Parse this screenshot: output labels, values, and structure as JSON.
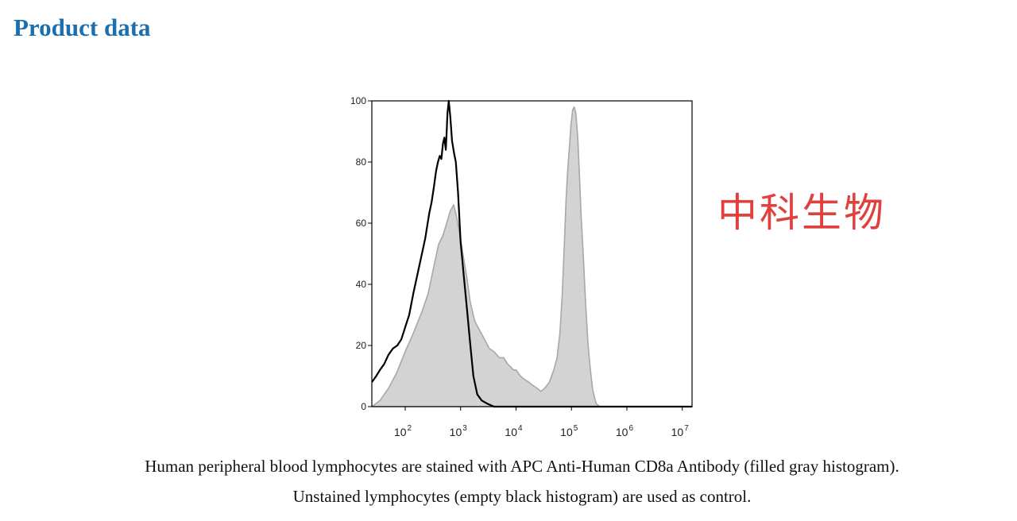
{
  "page": {
    "heading": "Product data",
    "watermark": "中科生物",
    "caption_line1": "Human peripheral blood lymphocytes are stained with APC Anti-Human CD8a Antibody (filled gray histogram).",
    "caption_line2": "Unstained lymphocytes (empty black histogram) are used as control."
  },
  "colors": {
    "heading": "#1a6fb0",
    "watermark": "#e0403e",
    "stained_fill": "#d3d3d3",
    "stained_line": "#a8a8a8",
    "control_line": "#000000"
  },
  "chart_data": {
    "type": "area",
    "title": "",
    "xlabel": "",
    "ylabel": "",
    "x_scale": "log",
    "xlim": [
      25,
      15000000
    ],
    "ylim": [
      0,
      100
    ],
    "x_ticks": [
      {
        "value": 100,
        "label": "10",
        "exp": "2"
      },
      {
        "value": 1000,
        "label": "10",
        "exp": "3"
      },
      {
        "value": 10000,
        "label": "10",
        "exp": "4"
      },
      {
        "value": 100000,
        "label": "10",
        "exp": "5"
      },
      {
        "value": 1000000,
        "label": "10",
        "exp": "6"
      },
      {
        "value": 10000000,
        "label": "10",
        "exp": "7"
      }
    ],
    "y_ticks": [
      {
        "value": 0,
        "label": "0"
      },
      {
        "value": 20,
        "label": "20"
      },
      {
        "value": 40,
        "label": "40"
      },
      {
        "value": 60,
        "label": "60"
      },
      {
        "value": 80,
        "label": "80"
      },
      {
        "value": 100,
        "label": "100"
      }
    ],
    "grid": false,
    "legend": "none",
    "series": [
      {
        "style": "filled gray histogram",
        "x": [
          25,
          35,
          50,
          70,
          100,
          140,
          200,
          260,
          330,
          400,
          480,
          560,
          650,
          750,
          850,
          950,
          1100,
          1300,
          1500,
          1800,
          2200,
          2700,
          3300,
          4000,
          5000,
          6000,
          7000,
          8000,
          9000,
          10000,
          12000,
          14000,
          17000,
          20000,
          24000,
          28000,
          33000,
          40000,
          48000,
          55000,
          62000,
          68000,
          74000,
          80000,
          86000,
          92000,
          98000,
          105000,
          112000,
          120000,
          130000,
          140000,
          150000,
          165000,
          180000,
          200000,
          220000,
          240000,
          260000,
          280000,
          320000,
          400000,
          1000000,
          5000000,
          15000000
        ],
        "y": [
          0,
          2,
          6,
          11,
          18,
          24,
          31,
          37,
          46,
          53,
          56,
          60,
          64,
          66,
          62,
          57,
          50,
          42,
          34,
          28,
          25,
          22,
          19,
          18,
          16,
          16,
          14,
          13,
          12,
          12,
          10,
          9,
          8,
          7,
          6,
          5,
          6,
          8,
          12,
          16,
          24,
          36,
          52,
          68,
          78,
          85,
          92,
          97,
          98,
          96,
          88,
          75,
          62,
          48,
          34,
          20,
          12,
          6,
          3,
          1,
          0,
          0,
          0,
          0,
          0
        ]
      },
      {
        "style": "empty black histogram",
        "x": [
          25,
          30,
          35,
          42,
          50,
          60,
          72,
          85,
          100,
          118,
          140,
          165,
          195,
          230,
          270,
          300,
          330,
          360,
          390,
          420,
          450,
          480,
          510,
          540,
          560,
          580,
          610,
          650,
          700,
          760,
          820,
          900,
          1000,
          1150,
          1300,
          1500,
          1700,
          2000,
          2400,
          3000,
          4000,
          6000,
          10000,
          100000,
          15000000
        ],
        "y": [
          8,
          10,
          12,
          14,
          17,
          19,
          20,
          22,
          26,
          30,
          37,
          43,
          49,
          55,
          63,
          67,
          72,
          77,
          80,
          82,
          81,
          86,
          88,
          84,
          90,
          96,
          100,
          95,
          87,
          83,
          80,
          70,
          54,
          42,
          32,
          20,
          10,
          4,
          2,
          1,
          0,
          0,
          0,
          0,
          0
        ]
      }
    ]
  }
}
